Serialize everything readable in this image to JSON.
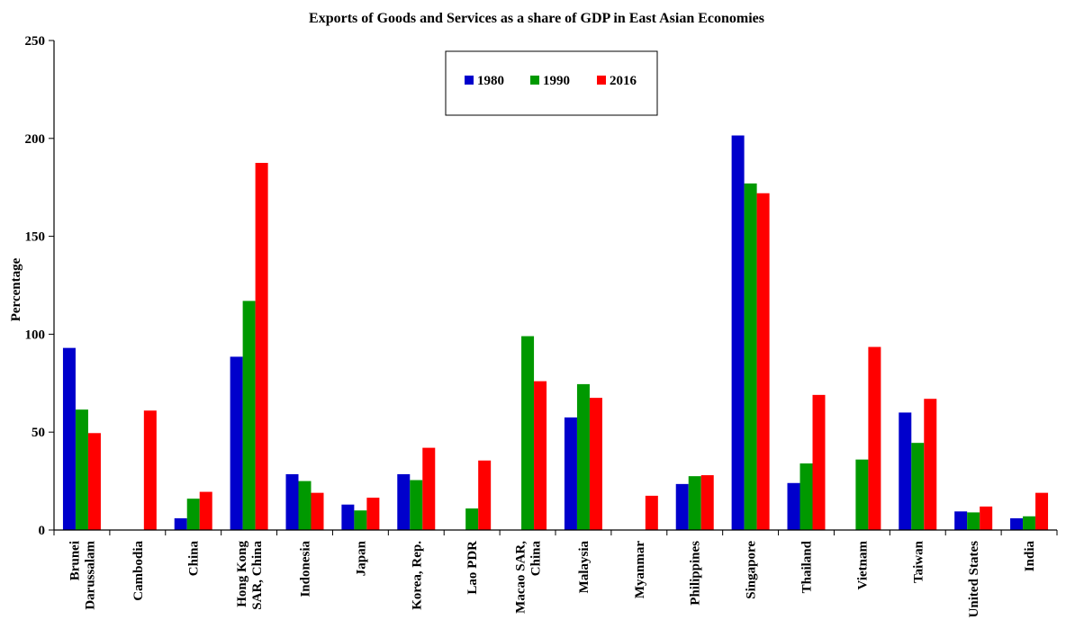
{
  "chart_data": {
    "type": "bar",
    "title": "Exports of Goods and Services as a share of GDP in East Asian Economies",
    "ylabel": "Percentage",
    "xlabel": "",
    "ylim": [
      0,
      250
    ],
    "yticks": [
      0,
      50,
      100,
      150,
      200,
      250
    ],
    "grid": false,
    "legend_position": "top-center",
    "categories": [
      [
        "Brunei",
        "Darussalam"
      ],
      [
        "Cambodia"
      ],
      [
        "China"
      ],
      [
        "Hong Kong",
        "SAR, China"
      ],
      [
        "Indonesia"
      ],
      [
        "Japan"
      ],
      [
        "Korea, Rep."
      ],
      [
        "Lao PDR"
      ],
      [
        "Macao SAR,",
        "China"
      ],
      [
        "Malaysia"
      ],
      [
        "Myanmar"
      ],
      [
        "Philippines"
      ],
      [
        "Singapore"
      ],
      [
        "Thailand"
      ],
      [
        "Vietnam"
      ],
      [
        "Taiwan"
      ],
      [
        "United States"
      ],
      [
        "India"
      ]
    ],
    "series": [
      {
        "name": "1980",
        "color": "#0000cc",
        "values": [
          93,
          null,
          6,
          88.5,
          28.5,
          13,
          28.5,
          null,
          null,
          57.5,
          null,
          23.5,
          201.5,
          24,
          null,
          60,
          9.5,
          6
        ]
      },
      {
        "name": "1990",
        "color": "#009900",
        "values": [
          61.5,
          null,
          16,
          117,
          25,
          10,
          25.5,
          11,
          99,
          74.5,
          null,
          27.5,
          177,
          34,
          36,
          44.5,
          9,
          7
        ]
      },
      {
        "name": "2016",
        "color": "#ff0000",
        "values": [
          49.5,
          61,
          19.5,
          187.5,
          19,
          16.5,
          42,
          35.5,
          76,
          67.5,
          17.5,
          28,
          172,
          69,
          93.5,
          67,
          12,
          19
        ]
      }
    ]
  }
}
